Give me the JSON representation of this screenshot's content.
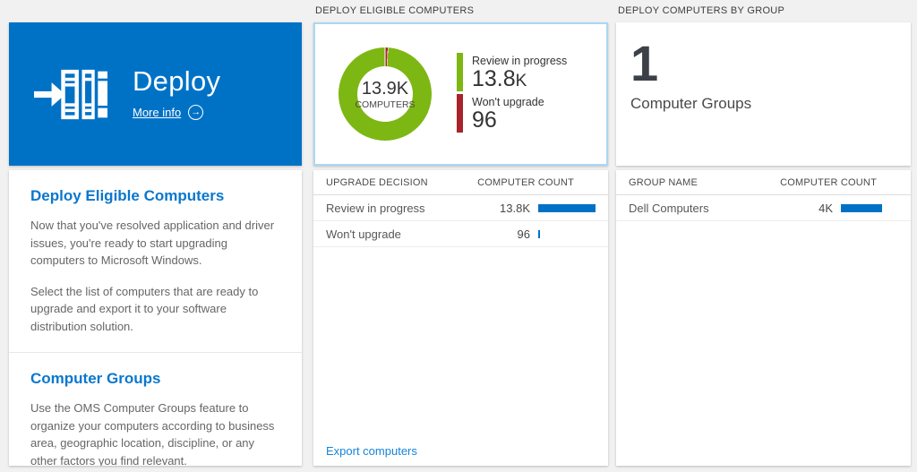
{
  "colors": {
    "tile_blue": "#0072c6",
    "bar_blue": "#0072c6",
    "link_blue": "#1584d8",
    "heading_blue": "#0a77cd",
    "tile_border": "#abd7f2",
    "donut_green": "#7db713",
    "donut_red": "#a8232b"
  },
  "columns": {
    "left": {
      "tile": {
        "title": "Deploy",
        "more_info_label": "More info",
        "arrow_glyph": "→"
      },
      "sections": [
        {
          "heading": "Deploy Eligible Computers",
          "p1": "Now that you've resolved application and driver issues, you're ready to start upgrading computers to Microsoft Windows.",
          "p2": "Select the list of computers that are ready to upgrade and export it to your software distribution solution."
        },
        {
          "heading": "Computer Groups",
          "p1": "Use the OMS Computer Groups feature to organize your computers according to business area, geographic location, discipline, or any other factors you find relevant."
        }
      ]
    },
    "middle": {
      "header": "DEPLOY ELIGIBLE COMPUTERS",
      "donut": {
        "center_value": "13.9K",
        "center_label": "COMPUTERS"
      },
      "legend": [
        {
          "label": "Review in progress",
          "value": "13.8",
          "suffix": "K"
        },
        {
          "label": "Won't upgrade",
          "value": "96",
          "suffix": ""
        }
      ],
      "table": {
        "col1": "UPGRADE DECISION",
        "col2": "COMPUTER COUNT",
        "rows": [
          {
            "name": "Review in progress",
            "value": "13.8K",
            "bar_pct": 100
          },
          {
            "name": "Won't upgrade",
            "value": "96",
            "bar_pct": 3
          }
        ]
      },
      "footer_link": "Export computers"
    },
    "right": {
      "header": "DEPLOY COMPUTERS BY GROUP",
      "count_tile": {
        "value": "1",
        "label": "Computer Groups"
      },
      "table": {
        "col1": "GROUP NAME",
        "col2": "COMPUTER COUNT",
        "rows": [
          {
            "name": "Dell Computers",
            "value": "4K",
            "bar_pct": 72
          }
        ]
      }
    }
  },
  "chart_data": {
    "type": "pie",
    "title": "DEPLOY ELIGIBLE COMPUTERS",
    "categories": [
      "Review in progress",
      "Won't upgrade"
    ],
    "values": [
      13800,
      96
    ],
    "colors": [
      "#7db713",
      "#a8232b"
    ],
    "center_value": "13.9K",
    "center_label": "COMPUTERS",
    "legend_position": "right"
  }
}
